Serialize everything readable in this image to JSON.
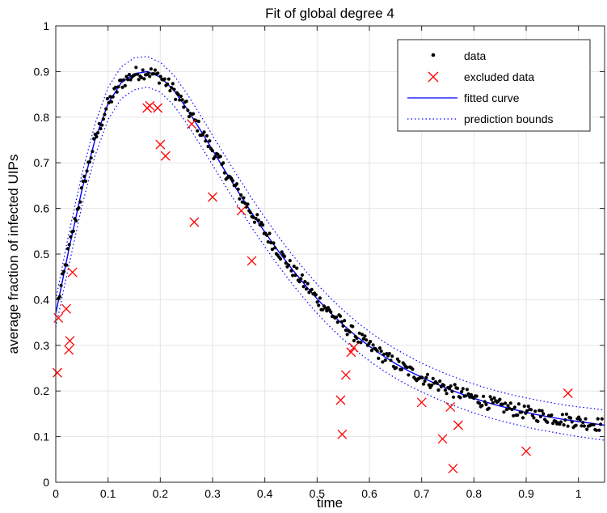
{
  "chart_data": {
    "type": "scatter",
    "title": "Fit of global degree 4",
    "xlabel": "time",
    "ylabel": "average fraction of infected UIPs",
    "xlim": [
      0,
      1.05
    ],
    "ylim": [
      0,
      1
    ],
    "xticks": [
      0,
      0.1,
      0.2,
      0.3,
      0.4,
      0.5,
      0.6,
      0.7,
      0.8,
      0.9,
      1
    ],
    "xtick_labels": [
      "0",
      "0.1",
      "0.2",
      "0.3",
      "0.4",
      "0.5",
      "0.6",
      "0.7",
      "0.8",
      "0.9",
      "1"
    ],
    "yticks": [
      0,
      0.1,
      0.2,
      0.3,
      0.4,
      0.5,
      0.6,
      0.7,
      0.8,
      0.9,
      1
    ],
    "ytick_labels": [
      "0",
      "0.1",
      "0.2",
      "0.3",
      "0.4",
      "0.5",
      "0.6",
      "0.7",
      "0.8",
      "0.9",
      "1"
    ],
    "grid": true,
    "legend_position": "top-right",
    "legend": [
      {
        "label": "data",
        "marker": "dot",
        "color": "#000000"
      },
      {
        "label": "excluded data",
        "marker": "x",
        "color": "#ff0000"
      },
      {
        "label": "fitted curve",
        "marker": "solid-line",
        "color": "#0000ff"
      },
      {
        "label": "prediction bounds",
        "marker": "dotted-line",
        "color": "#0000ff"
      }
    ],
    "colors": {
      "data": "#000000",
      "excluded": "#ff0000",
      "fit": "#0000ff"
    },
    "excluded_data": {
      "x": [
        0.003,
        0.005,
        0.02,
        0.025,
        0.027,
        0.032,
        0.175,
        0.18,
        0.195,
        0.2,
        0.21,
        0.26,
        0.265,
        0.3,
        0.355,
        0.375,
        0.545,
        0.548,
        0.555,
        0.565,
        0.57,
        0.7,
        0.74,
        0.755,
        0.76,
        0.77,
        0.9,
        0.98
      ],
      "y": [
        0.24,
        0.36,
        0.38,
        0.29,
        0.31,
        0.46,
        0.82,
        0.825,
        0.82,
        0.74,
        0.715,
        0.785,
        0.57,
        0.625,
        0.595,
        0.485,
        0.18,
        0.105,
        0.235,
        0.285,
        0.295,
        0.175,
        0.095,
        0.165,
        0.03,
        0.125,
        0.068,
        0.195
      ]
    },
    "fit_curve": {
      "x": [
        0,
        0.025,
        0.05,
        0.075,
        0.1,
        0.125,
        0.15,
        0.175,
        0.2,
        0.225,
        0.25,
        0.275,
        0.3,
        0.325,
        0.35,
        0.375,
        0.4,
        0.425,
        0.45,
        0.475,
        0.5,
        0.525,
        0.55,
        0.575,
        0.6,
        0.625,
        0.65,
        0.675,
        0.7,
        0.725,
        0.75,
        0.775,
        0.8,
        0.825,
        0.85,
        0.875,
        0.9,
        0.925,
        0.95,
        0.975,
        1,
        1.025,
        1.05
      ],
      "y": [
        0.37,
        0.51,
        0.64,
        0.75,
        0.83,
        0.875,
        0.895,
        0.9,
        0.888,
        0.86,
        0.82,
        0.775,
        0.728,
        0.68,
        0.635,
        0.59,
        0.548,
        0.508,
        0.47,
        0.435,
        0.402,
        0.372,
        0.345,
        0.32,
        0.298,
        0.278,
        0.26,
        0.244,
        0.23,
        0.217,
        0.205,
        0.194,
        0.184,
        0.175,
        0.167,
        0.16,
        0.153,
        0.147,
        0.142,
        0.137,
        0.133,
        0.129,
        0.125
      ],
      "upper": [
        0.4,
        0.545,
        0.675,
        0.785,
        0.865,
        0.91,
        0.93,
        0.933,
        0.92,
        0.893,
        0.853,
        0.808,
        0.76,
        0.713,
        0.667,
        0.622,
        0.58,
        0.54,
        0.502,
        0.467,
        0.434,
        0.404,
        0.377,
        0.352,
        0.33,
        0.31,
        0.292,
        0.276,
        0.261,
        0.248,
        0.236,
        0.225,
        0.215,
        0.206,
        0.198,
        0.191,
        0.185,
        0.179,
        0.174,
        0.169,
        0.165,
        0.162,
        0.158
      ],
      "lower": [
        0.34,
        0.475,
        0.605,
        0.715,
        0.795,
        0.84,
        0.86,
        0.866,
        0.855,
        0.827,
        0.787,
        0.742,
        0.695,
        0.648,
        0.603,
        0.558,
        0.516,
        0.476,
        0.438,
        0.403,
        0.37,
        0.34,
        0.313,
        0.288,
        0.266,
        0.246,
        0.228,
        0.212,
        0.198,
        0.185,
        0.173,
        0.162,
        0.152,
        0.143,
        0.135,
        0.128,
        0.121,
        0.115,
        0.11,
        0.105,
        0.1,
        0.096,
        0.092
      ]
    }
  }
}
